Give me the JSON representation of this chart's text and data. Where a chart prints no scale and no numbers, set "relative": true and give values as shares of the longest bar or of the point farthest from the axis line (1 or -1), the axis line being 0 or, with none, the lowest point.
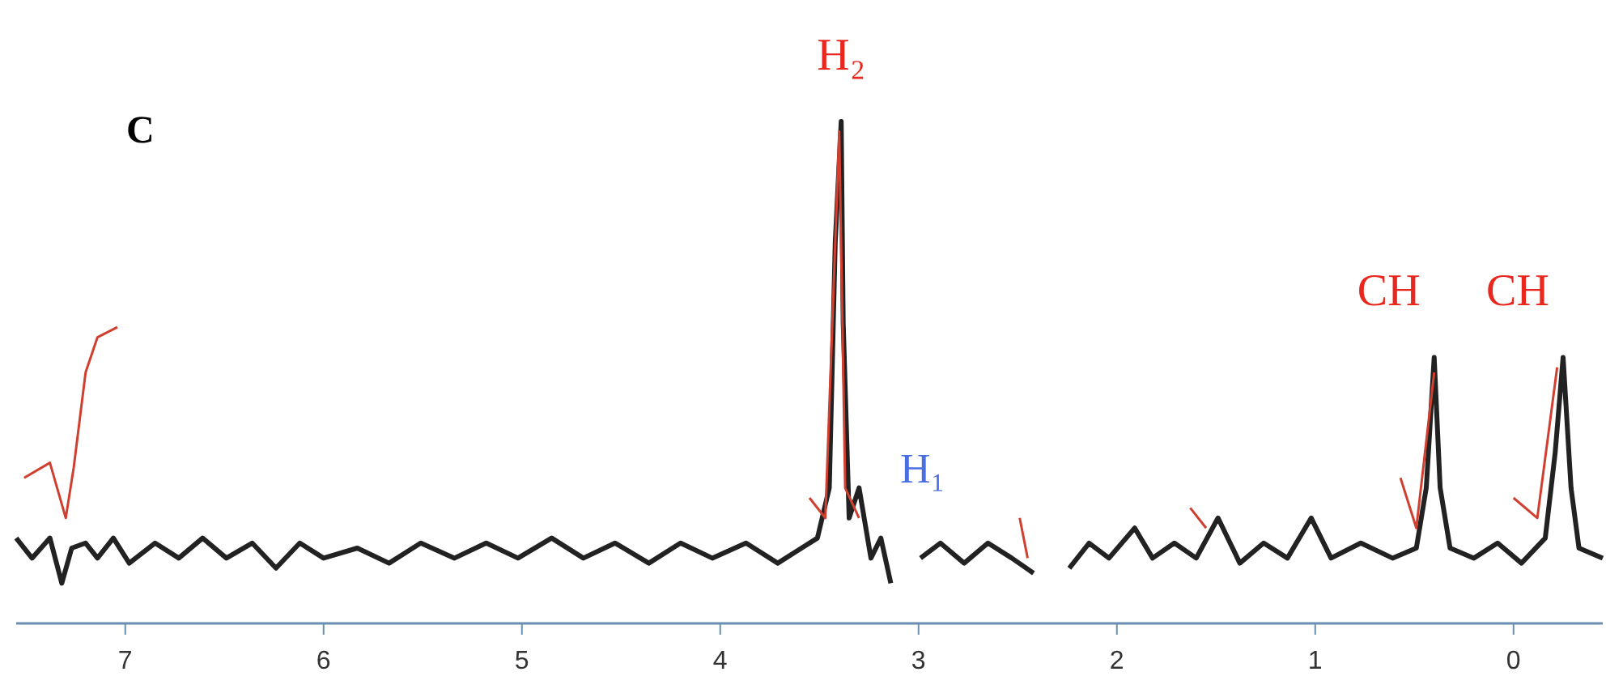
{
  "chart_data": {
    "type": "line",
    "relative": true,
    "xlim": [
      7.55,
      -0.45
    ],
    "xticks": [
      7,
      6,
      5,
      4,
      3,
      2,
      1,
      0
    ],
    "annotations": [
      "C",
      "H₁",
      {
        "text": "H₂",
        "x": 3.39,
        "y": 1
      },
      {
        "text": "CH",
        "x": 0.4,
        "y": 0.53
      },
      {
        "text": "CH",
        "x": -0.25,
        "y": 0.53
      }
    ],
    "series": [
      {
        "color": "#222222",
        "x": [
          7.55,
          7.47,
          7.38,
          7.32,
          7.27,
          7.2,
          7.14,
          7.06,
          6.98,
          6.85,
          6.73,
          6.61,
          6.49,
          6.36,
          6.24,
          6.12,
          6.0,
          5.83,
          5.67,
          5.51,
          5.34,
          5.18,
          5.02,
          4.85,
          4.69,
          4.53,
          4.36,
          4.2,
          4.04,
          3.87,
          3.71,
          3.59,
          3.51,
          3.45,
          3.42,
          3.39,
          3.38,
          3.35,
          3.3,
          3.24,
          3.19,
          3.14,
          3.1,
          2.99,
          2.89,
          2.77,
          2.65,
          2.53,
          2.42,
          2.3,
          2.24,
          2.14,
          2.04,
          1.91,
          1.82,
          1.71,
          1.6,
          1.49,
          1.38,
          1.26,
          1.14,
          1.02,
          0.92,
          0.77,
          0.61,
          0.49,
          0.44,
          0.4,
          0.37,
          0.32,
          0.2,
          0.08,
          -0.04,
          -0.16,
          -0.21,
          -0.25,
          -0.29,
          -0.33,
          -0.45
        ],
        "values": [
          0.17,
          0.13,
          0.17,
          0.08,
          0.15,
          0.16,
          0.13,
          0.17,
          0.12,
          0.16,
          0.13,
          0.17,
          0.13,
          0.16,
          0.11,
          0.16,
          0.13,
          0.15,
          0.12,
          0.16,
          0.13,
          0.16,
          0.13,
          0.17,
          0.13,
          0.16,
          0.12,
          0.16,
          0.13,
          0.16,
          0.12,
          0.15,
          0.17,
          0.27,
          0.76,
          1,
          0.6,
          0.21,
          0.27,
          0.13,
          0.17,
          0.08,
          null,
          0.13,
          0.16,
          0.12,
          0.16,
          0.13,
          0.1,
          null,
          0.11,
          0.16,
          0.13,
          0.19,
          0.13,
          0.16,
          0.13,
          0.21,
          0.12,
          0.16,
          0.13,
          0.21,
          0.13,
          0.16,
          0.13,
          0.15,
          0.27,
          0.53,
          0.27,
          0.15,
          0.13,
          0.16,
          0.12,
          0.17,
          0.34,
          0.53,
          0.27,
          0.15,
          0.13
        ]
      },
      {
        "color": "#d04030",
        "x": [
          7.51,
          7.38,
          7.3,
          7.26,
          7.2,
          7.14,
          7.04,
          7.0,
          3.55,
          3.47,
          3.4,
          3.37,
          3.3,
          3.28,
          2.49,
          2.45,
          2.44,
          1.63,
          1.55,
          1.54,
          0.57,
          0.49,
          0.4,
          0.39,
          0.0,
          -0.12,
          -0.22
        ],
        "values": [
          0.29,
          0.32,
          0.21,
          0.31,
          0.5,
          0.57,
          0.59,
          null,
          0.25,
          0.21,
          0.98,
          0.27,
          0.21,
          null,
          0.21,
          0.13,
          null,
          0.23,
          0.19,
          null,
          0.29,
          0.19,
          0.5,
          null,
          0.25,
          0.21,
          0.51
        ]
      }
    ]
  }
}
